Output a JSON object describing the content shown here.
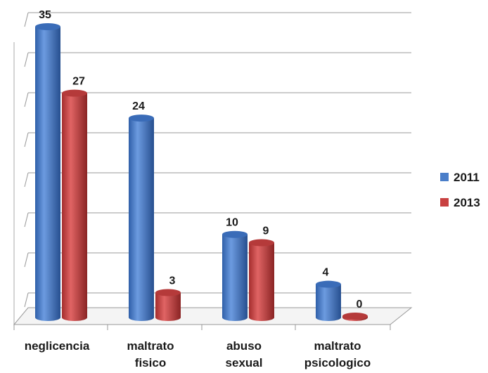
{
  "chart_data": {
    "type": "bar",
    "categories": [
      [
        "neglicencia"
      ],
      [
        "maltrato",
        "fisico"
      ],
      [
        "abuso",
        "sexual"
      ],
      [
        "maltrato",
        "psicologico"
      ]
    ],
    "series": [
      {
        "name": "2011",
        "values": [
          35,
          24,
          10,
          4
        ],
        "color": "#4a7ec9"
      },
      {
        "name": "2013",
        "values": [
          27,
          3,
          9,
          0
        ],
        "color": "#c84040"
      }
    ],
    "data_labels": [
      [
        "35",
        "27"
      ],
      [
        "24",
        "3"
      ],
      [
        "10",
        "9"
      ],
      [
        "4",
        "0"
      ]
    ],
    "ylim": [
      0,
      35
    ],
    "grid": true,
    "legend": "right",
    "style": "3d-cylinder"
  }
}
